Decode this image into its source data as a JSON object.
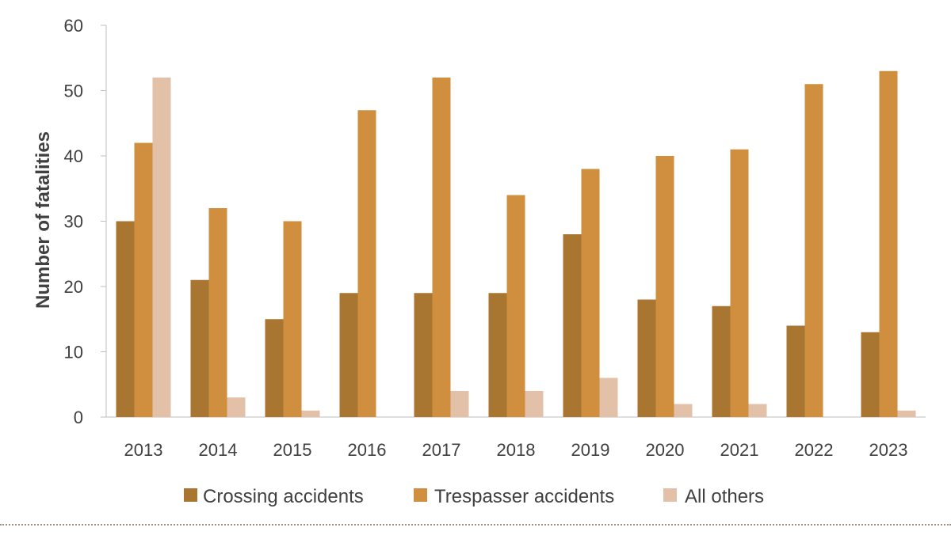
{
  "chart_data": {
    "type": "bar",
    "title": "",
    "xlabel": "",
    "ylabel": "Number of fatalities",
    "ylim": [
      0,
      60
    ],
    "yticks": [
      0,
      10,
      20,
      30,
      40,
      50,
      60
    ],
    "grid": false,
    "legend_position": "bottom",
    "categories": [
      "2013",
      "2014",
      "2015",
      "2016",
      "2017",
      "2018",
      "2019",
      "2020",
      "2021",
      "2022",
      "2023"
    ],
    "series": [
      {
        "name": "Crossing accidents",
        "color": "#a87631",
        "values": [
          30,
          21,
          15,
          19,
          19,
          19,
          28,
          18,
          17,
          14,
          13
        ]
      },
      {
        "name": "Trespasser accidents",
        "color": "#cf8f3e",
        "values": [
          42,
          32,
          30,
          47,
          52,
          34,
          38,
          40,
          41,
          51,
          53
        ]
      },
      {
        "name": "All others",
        "color": "#e2c1a8",
        "values": [
          52,
          3,
          1,
          0,
          4,
          4,
          6,
          2,
          2,
          0,
          1
        ]
      }
    ]
  }
}
